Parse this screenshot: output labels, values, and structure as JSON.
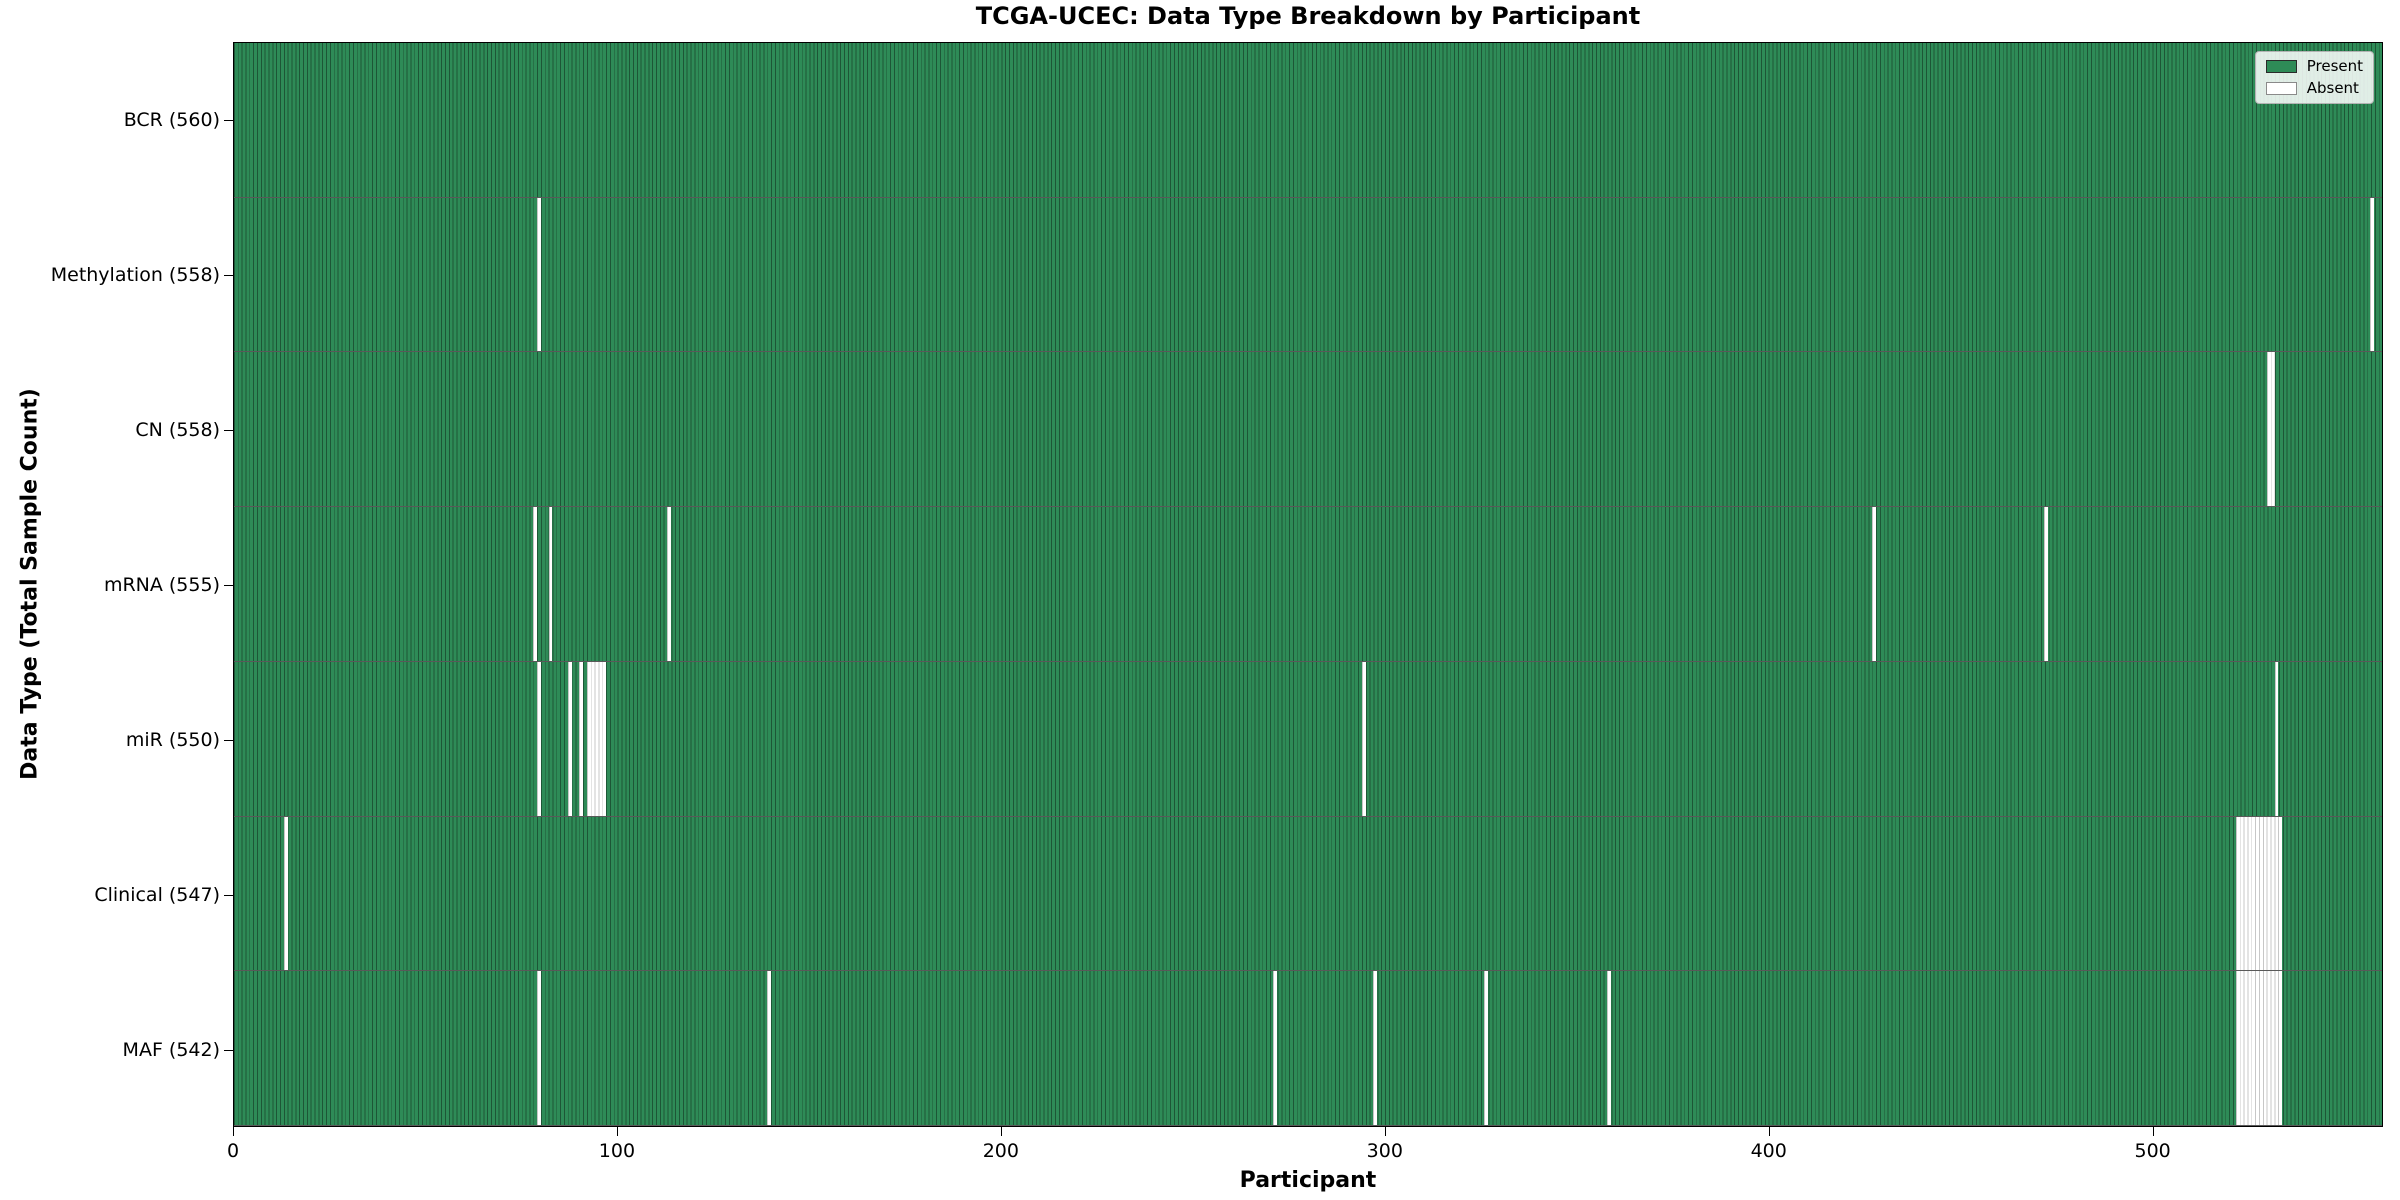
{
  "title": "TCGA-UCEC: Data Type Breakdown by Participant",
  "xlabel": "Participant",
  "ylabel": "Data Type (Total Sample Count)",
  "legend": {
    "present_label": "Present",
    "absent_label": "Absent"
  },
  "colors": {
    "present": "#2E8B57",
    "absent": "#FFFFFF",
    "bar_edge": "rgba(0,0,0,0.38)",
    "plot_border": "#000000"
  },
  "chart_data": {
    "type": "heatmap",
    "subtype": "presence-absence-matrix",
    "title": "TCGA-UCEC: Data Type Breakdown by Participant",
    "xlabel": "Participant",
    "ylabel": "Data Type (Total Sample Count)",
    "x_range": [
      0,
      560
    ],
    "n_participants": 560,
    "x_ticks": [
      0,
      100,
      200,
      300,
      400,
      500
    ],
    "grid": false,
    "legend_position": "upper right",
    "legend_entries": [
      {
        "label": "Present",
        "color": "#2E8B57"
      },
      {
        "label": "Absent",
        "color": "#FFFFFF"
      }
    ],
    "rows": [
      {
        "name": "bcr",
        "label": "BCR (560)",
        "data_type": "BCR",
        "total_sample_count": 560,
        "absent_participants": []
      },
      {
        "name": "methylation",
        "label": "Methylation (558)",
        "data_type": "Methylation",
        "total_sample_count": 558,
        "absent_participants": [
          79,
          557
        ]
      },
      {
        "name": "cn",
        "label": "CN (558)",
        "data_type": "CN",
        "total_sample_count": 558,
        "absent_participants": [
          530,
          531
        ]
      },
      {
        "name": "mrna",
        "label": "mRNA (555)",
        "data_type": "mRNA",
        "total_sample_count": 555,
        "absent_participants": [
          78,
          82,
          113,
          427,
          472
        ]
      },
      {
        "name": "mir",
        "label": "miR (550)",
        "data_type": "miR",
        "total_sample_count": 550,
        "absent_participants": [
          79,
          87,
          90,
          92,
          93,
          94,
          95,
          96,
          294,
          532
        ]
      },
      {
        "name": "clinical",
        "label": "Clinical (547)",
        "data_type": "Clinical",
        "total_sample_count": 547,
        "absent_participants": [
          13,
          522,
          523,
          524,
          525,
          526,
          527,
          528,
          529,
          530,
          531,
          532,
          533
        ]
      },
      {
        "name": "maf",
        "label": "MAF (542)",
        "data_type": "MAF",
        "total_sample_count": 542,
        "absent_participants": [
          79,
          139,
          271,
          297,
          326,
          358,
          522,
          523,
          524,
          525,
          526,
          527,
          528,
          529,
          530,
          531,
          532,
          533
        ]
      }
    ]
  }
}
